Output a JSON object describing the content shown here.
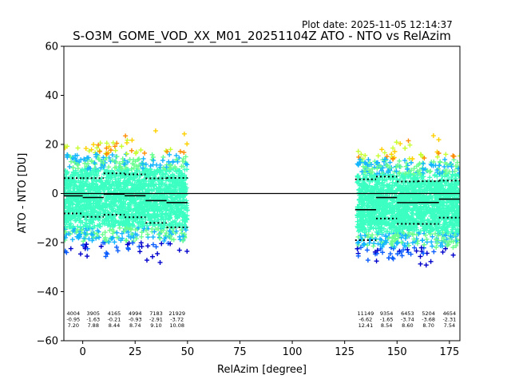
{
  "chart_data": {
    "type": "scatter",
    "plot_date": "Plot date: 2025-11-05 12:14:37",
    "title": "S-O3M_GOME_VOD_XX_M01_20251104Z ATO - NTO vs RelAzim",
    "xlabel": "RelAzim [degree]",
    "ylabel": "ATO - NTO [DU]",
    "xlim": [
      -9,
      180
    ],
    "ylim": [
      -60,
      60
    ],
    "xticks": [
      0,
      25,
      50,
      75,
      100,
      125,
      150,
      175
    ],
    "yticks": [
      -60,
      -40,
      -20,
      0,
      20,
      40,
      60
    ],
    "xtick_labels": [
      "0",
      "25",
      "50",
      "75",
      "100",
      "125",
      "150",
      "175"
    ],
    "ytick_labels": [
      "−60",
      "−40",
      "−20",
      "0",
      "20",
      "40",
      "60"
    ],
    "zero_line": 0,
    "marker": "+",
    "clusters": [
      {
        "x_range": [
          -9,
          50
        ],
        "y_center": -2,
        "y_spread": 20
      },
      {
        "x_range": [
          131,
          180
        ],
        "y_center": -4,
        "y_spread": 20
      }
    ],
    "bins": [
      {
        "x_range": [
          -9,
          0
        ],
        "count": "4004",
        "mean": "-0.95",
        "std": "7.20",
        "mean_val": -0.95,
        "std_val": 7.2
      },
      {
        "x_range": [
          0,
          10
        ],
        "count": "3905",
        "mean": "-1.63",
        "std": "7.88",
        "mean_val": -1.63,
        "std_val": 7.88
      },
      {
        "x_range": [
          10,
          20
        ],
        "count": "4165",
        "mean": "-0.21",
        "std": "8.44",
        "mean_val": -0.21,
        "std_val": 8.44
      },
      {
        "x_range": [
          20,
          30
        ],
        "count": "4994",
        "mean": "-0.93",
        "std": "8.74",
        "mean_val": -0.93,
        "std_val": 8.74
      },
      {
        "x_range": [
          30,
          40
        ],
        "count": "7183",
        "mean": "-2.91",
        "std": "9.10",
        "mean_val": -2.91,
        "std_val": 9.1
      },
      {
        "x_range": [
          40,
          50
        ],
        "count": "21929",
        "mean": "-3.72",
        "std": "10.08",
        "mean_val": -3.72,
        "std_val": 10.08
      },
      {
        "x_range": [
          130,
          140
        ],
        "count": "11149",
        "mean": "-6.62",
        "std": "12.41",
        "mean_val": -6.62,
        "std_val": 12.41
      },
      {
        "x_range": [
          140,
          150
        ],
        "count": "9354",
        "mean": "-1.65",
        "std": "8.54",
        "mean_val": -1.65,
        "std_val": 8.54
      },
      {
        "x_range": [
          150,
          160
        ],
        "count": "6453",
        "mean": "-3.74",
        "std": "8.60",
        "mean_val": -3.74,
        "std_val": 8.6
      },
      {
        "x_range": [
          160,
          170
        ],
        "count": "5204",
        "mean": "-3.68",
        "std": "8.70",
        "mean_val": -3.68,
        "std_val": 8.7
      },
      {
        "x_range": [
          170,
          180
        ],
        "count": "4654",
        "mean": "-2.31",
        "std": "7.54",
        "mean_val": -2.31,
        "std_val": 7.54
      }
    ],
    "colormap": [
      "#0000cc",
      "#0a5cff",
      "#13b6ff",
      "#3cffc2",
      "#6aff8f",
      "#c8ff30",
      "#ffd000",
      "#ff8c00"
    ]
  }
}
